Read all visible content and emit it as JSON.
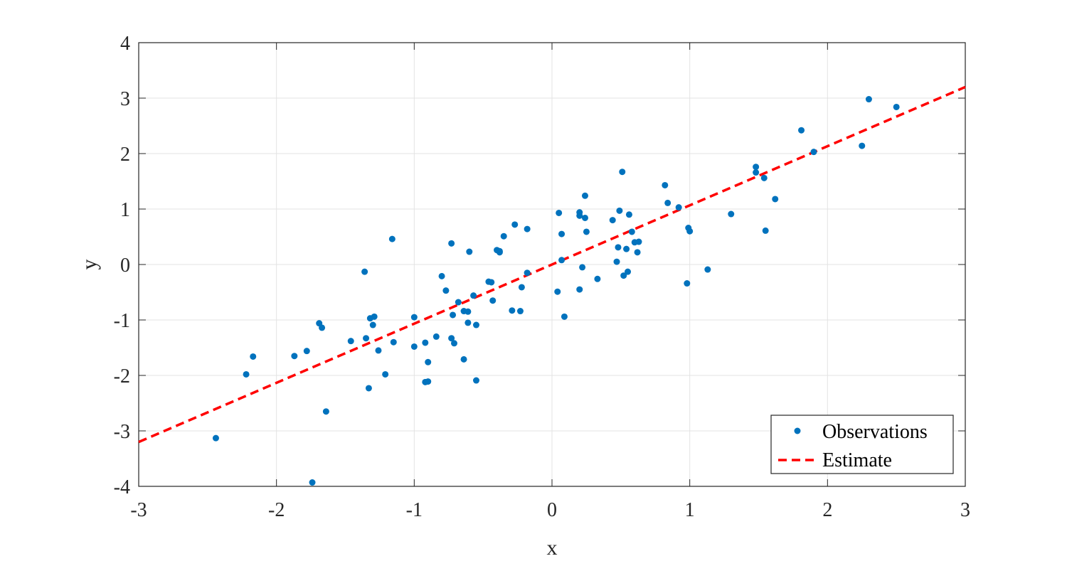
{
  "chart_data": {
    "type": "scatter",
    "xlabel": "x",
    "ylabel": "y",
    "xlim": [
      -3,
      3
    ],
    "ylim": [
      -4,
      4
    ],
    "xticks": [
      -3,
      -2,
      -1,
      0,
      1,
      2,
      3
    ],
    "yticks": [
      -4,
      -3,
      -2,
      -1,
      0,
      1,
      2,
      3,
      4
    ],
    "grid": true,
    "legend_position": "bottom-right",
    "series": [
      {
        "name": "Observations",
        "kind": "scatter",
        "color": "#0072BD",
        "points": [
          [
            -2.44,
            -3.13
          ],
          [
            -2.22,
            -1.98
          ],
          [
            -2.17,
            -1.66
          ],
          [
            -1.87,
            -1.65
          ],
          [
            -1.78,
            -1.56
          ],
          [
            -1.74,
            -3.93
          ],
          [
            -1.69,
            -1.06
          ],
          [
            -1.67,
            -1.14
          ],
          [
            -1.64,
            -2.65
          ],
          [
            -1.46,
            -1.38
          ],
          [
            -1.36,
            -0.13
          ],
          [
            -1.35,
            -1.33
          ],
          [
            -1.33,
            -2.23
          ],
          [
            -1.32,
            -0.97
          ],
          [
            -1.3,
            -1.09
          ],
          [
            -1.29,
            -0.94
          ],
          [
            -1.26,
            -1.55
          ],
          [
            -1.21,
            -1.98
          ],
          [
            -1.16,
            0.46
          ],
          [
            -1.15,
            -1.4
          ],
          [
            -1.0,
            -0.95
          ],
          [
            -1.0,
            -1.48
          ],
          [
            -0.92,
            -1.41
          ],
          [
            -0.92,
            -2.12
          ],
          [
            -0.9,
            -2.11
          ],
          [
            -0.9,
            -1.76
          ],
          [
            -0.84,
            -1.3
          ],
          [
            -0.8,
            -0.21
          ],
          [
            -0.77,
            -0.47
          ],
          [
            -0.73,
            0.38
          ],
          [
            -0.73,
            -1.33
          ],
          [
            -0.72,
            -0.91
          ],
          [
            -0.71,
            -1.42
          ],
          [
            -0.68,
            -0.68
          ],
          [
            -0.64,
            -0.84
          ],
          [
            -0.64,
            -1.71
          ],
          [
            -0.61,
            -0.85
          ],
          [
            -0.61,
            -1.05
          ],
          [
            -0.6,
            0.23
          ],
          [
            -0.57,
            -0.56
          ],
          [
            -0.55,
            -1.09
          ],
          [
            -0.55,
            -2.09
          ],
          [
            -0.46,
            -0.31
          ],
          [
            -0.44,
            -0.32
          ],
          [
            -0.43,
            -0.65
          ],
          [
            -0.4,
            0.26
          ],
          [
            -0.38,
            0.22
          ],
          [
            -0.38,
            0.24
          ],
          [
            -0.35,
            0.51
          ],
          [
            -0.29,
            -0.83
          ],
          [
            -0.27,
            0.72
          ],
          [
            -0.23,
            -0.84
          ],
          [
            -0.22,
            -0.41
          ],
          [
            -0.18,
            0.64
          ],
          [
            -0.18,
            -0.15
          ],
          [
            0.04,
            -0.49
          ],
          [
            0.05,
            0.93
          ],
          [
            0.07,
            0.08
          ],
          [
            0.07,
            0.55
          ],
          [
            0.09,
            -0.94
          ],
          [
            0.2,
            -0.45
          ],
          [
            0.2,
            0.88
          ],
          [
            0.2,
            0.94
          ],
          [
            0.22,
            -0.05
          ],
          [
            0.24,
            0.84
          ],
          [
            0.24,
            1.24
          ],
          [
            0.25,
            0.59
          ],
          [
            0.33,
            -0.26
          ],
          [
            0.44,
            0.8
          ],
          [
            0.47,
            0.05
          ],
          [
            0.48,
            0.31
          ],
          [
            0.49,
            0.97
          ],
          [
            0.51,
            1.67
          ],
          [
            0.52,
            -0.2
          ],
          [
            0.54,
            0.28
          ],
          [
            0.55,
            -0.13
          ],
          [
            0.56,
            0.9
          ],
          [
            0.58,
            0.59
          ],
          [
            0.6,
            0.4
          ],
          [
            0.62,
            0.22
          ],
          [
            0.63,
            0.41
          ],
          [
            0.82,
            1.43
          ],
          [
            0.84,
            1.11
          ],
          [
            0.92,
            1.03
          ],
          [
            0.98,
            -0.34
          ],
          [
            0.99,
            0.66
          ],
          [
            1.0,
            0.6
          ],
          [
            1.13,
            -0.09
          ],
          [
            1.3,
            0.91
          ],
          [
            1.48,
            1.76
          ],
          [
            1.48,
            1.66
          ],
          [
            1.54,
            1.56
          ],
          [
            1.55,
            0.61
          ],
          [
            1.62,
            1.18
          ],
          [
            1.81,
            2.42
          ],
          [
            1.9,
            2.03
          ],
          [
            2.25,
            2.14
          ],
          [
            2.3,
            2.98
          ],
          [
            2.5,
            2.84
          ]
        ]
      },
      {
        "name": "Estimate",
        "kind": "line",
        "style": "dashed",
        "color": "#FF0000",
        "points": [
          [
            -3,
            -3.2
          ],
          [
            3,
            3.2
          ]
        ]
      }
    ]
  }
}
